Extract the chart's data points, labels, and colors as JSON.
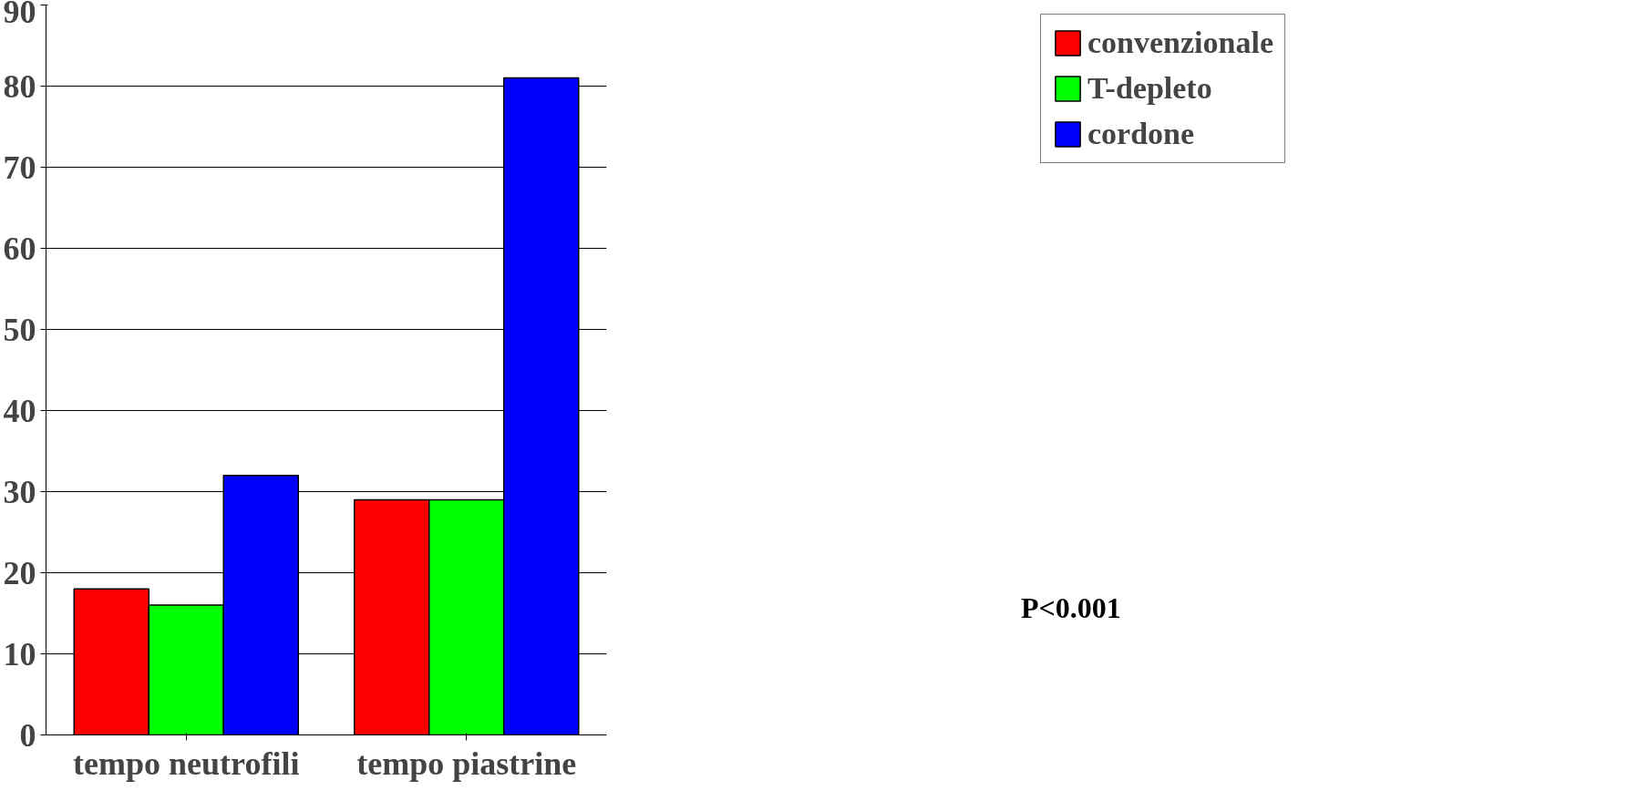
{
  "chart_data": {
    "type": "bar",
    "categories": [
      "tempo neutrofili",
      "tempo piastrine"
    ],
    "series": [
      {
        "name": "convenzionale",
        "color": "#ff0000",
        "values": [
          18,
          29
        ]
      },
      {
        "name": "T-depleto",
        "color": "#00ff00",
        "values": [
          16,
          29
        ]
      },
      {
        "name": "cordone",
        "color": "#0000ff",
        "values": [
          32,
          81
        ]
      }
    ],
    "ylim": [
      0,
      90
    ],
    "yticks": [
      0,
      10,
      20,
      30,
      40,
      50,
      60,
      70,
      80,
      90
    ],
    "grid": "y",
    "legend": "right",
    "annotations": [
      "P<0.001"
    ]
  }
}
